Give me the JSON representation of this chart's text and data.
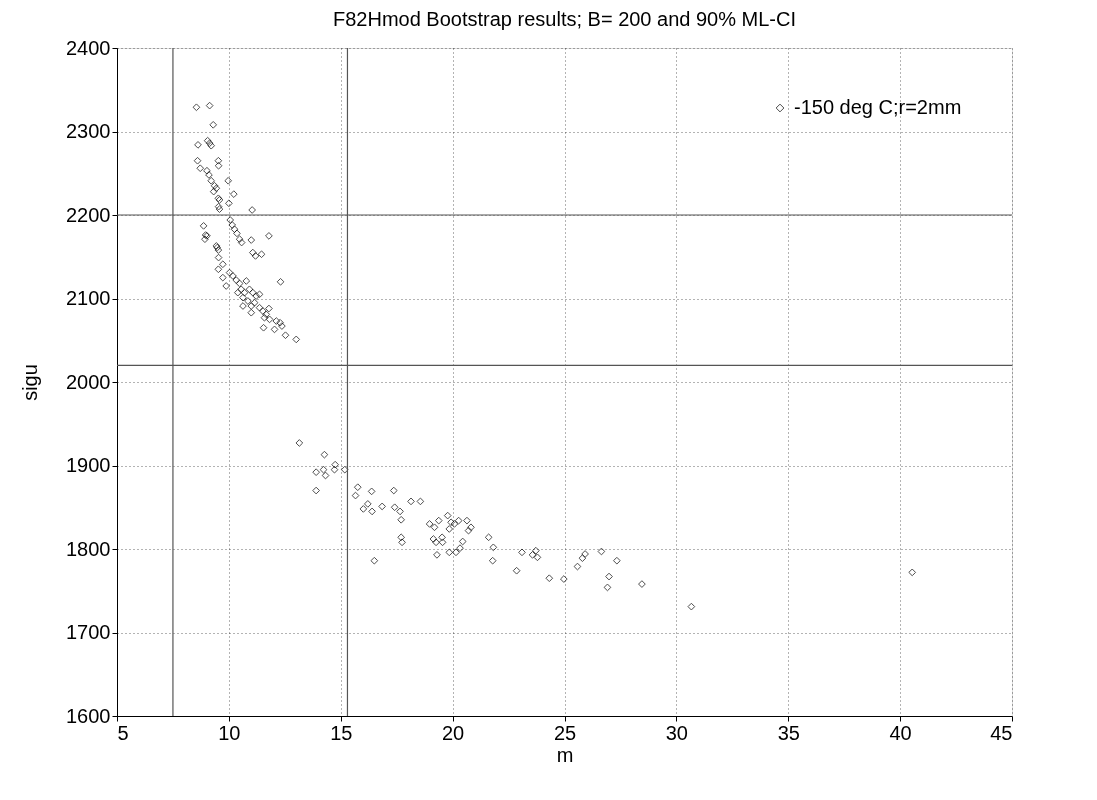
{
  "chart_data": {
    "type": "scatter",
    "title": "F82Hmod Bootstrap results; B=   200 and 90% ML-CI",
    "xlabel": "m",
    "ylabel": "sigu",
    "xlim": [
      5,
      45
    ],
    "xticks": [
      5,
      10,
      15,
      20,
      25,
      30,
      35,
      40,
      45
    ],
    "ylim": [
      1600,
      2400
    ],
    "yticks": [
      1600,
      1700,
      1800,
      1900,
      2000,
      2100,
      2200,
      2300,
      2400
    ],
    "grid": true,
    "legend": "top right",
    "marker": "diamond",
    "ref_lines": [
      {
        "axis": "x",
        "value": 7.5,
        "color": "#555555"
      },
      {
        "axis": "x",
        "value": 15.3,
        "color": "#555555"
      },
      {
        "axis": "y",
        "value": 2200,
        "color": "#555555"
      },
      {
        "axis": "y",
        "value": 2020,
        "color": "#555555"
      }
    ],
    "series": [
      {
        "name": "-150 deg C;r=2mm",
        "color": "#000000",
        "x": [
          8.55,
          9.14,
          9.3,
          8.62,
          9.05,
          9.14,
          9.21,
          8.6,
          9.53,
          9.54,
          8.72,
          9.02,
          9.11,
          9.21,
          9.97,
          9.36,
          9.44,
          9.32,
          10.22,
          9.53,
          9.58,
          10.0,
          9.54,
          9.58,
          11.04,
          10.06,
          10.15,
          10.25,
          10.36,
          8.87,
          8.96,
          9.02,
          8.93,
          11.79,
          10.48,
          10.57,
          11.0,
          9.44,
          9.48,
          9.53,
          11.07,
          11.19,
          11.46,
          9.54,
          9.73,
          9.53,
          9.73,
          9.88,
          10.18,
          10.33,
          10.48,
          10.78,
          10.55,
          10.7,
          10.92,
          11.07,
          11.22,
          11.37,
          10.4,
          10.63,
          10.85,
          10.63,
          11.0,
          11.15,
          11.37,
          11.52,
          11.79,
          11.0,
          11.59,
          12.12,
          12.29,
          11.55,
          12.04,
          12.37,
          12.53,
          13.01,
          11.82,
          11.67,
          10.03,
          12.31,
          13.15,
          14.27,
          13.9,
          14.23,
          14.32,
          14.75,
          14.72,
          15.18,
          13.9,
          15.76,
          15.66,
          16.38,
          17.37,
          16.21,
          16.01,
          16.4,
          16.85,
          17.41,
          17.65,
          17.7,
          18.14,
          18.56,
          17.7,
          17.74,
          16.5,
          18.97,
          19.19,
          19.38,
          19.78,
          19.93,
          19.85,
          20.08,
          20.27,
          20.64,
          20.82,
          20.71,
          19.14,
          19.26,
          19.53,
          19.55,
          19.3,
          19.85,
          20.15,
          20.33,
          20.45,
          21.61,
          21.82,
          21.79,
          22.86,
          23.1,
          23.57,
          23.72,
          23.79,
          24.32,
          24.97,
          25.58,
          25.8,
          25.92,
          26.65,
          26.99,
          26.92,
          27.34,
          28.46,
          30.67,
          40.54
        ],
        "values": [
          2329,
          2331,
          2308,
          2284,
          2289,
          2286,
          2283,
          2265,
          2265,
          2259,
          2256,
          2253,
          2248,
          2241,
          2241,
          2235,
          2232,
          2228,
          2225,
          2220,
          2218,
          2214,
          2210,
          2207,
          2206,
          2194,
          2188,
          2183,
          2178,
          2187,
          2176,
          2175,
          2171,
          2175,
          2171,
          2167,
          2170,
          2163,
          2161,
          2158,
          2155,
          2151,
          2153,
          2149,
          2141,
          2135,
          2125,
          2115,
          2127,
          2122,
          2118,
          2121,
          2111,
          2107,
          2111,
          2107,
          2103,
          2105,
          2107,
          2101,
          2097,
          2091,
          2091,
          2095,
          2089,
          2085,
          2088,
          2083,
          2077,
          2073,
          2071,
          2065,
          2063,
          2067,
          2056,
          2051,
          2075,
          2081,
          2131,
          2120,
          1927,
          1913,
          1892,
          1895,
          1888,
          1901,
          1895,
          1895,
          1870,
          1874,
          1864,
          1869,
          1870,
          1854,
          1848,
          1845,
          1851,
          1850,
          1845,
          1835,
          1857,
          1857,
          1814,
          1808,
          1786,
          1830,
          1826,
          1834,
          1840,
          1832,
          1824,
          1830,
          1834,
          1834,
          1826,
          1822,
          1812,
          1808,
          1814,
          1808,
          1793,
          1796,
          1796,
          1801,
          1809,
          1814,
          1802,
          1786,
          1774,
          1796,
          1793,
          1798,
          1790,
          1765,
          1764,
          1779,
          1789,
          1794,
          1797,
          1767,
          1754,
          1786,
          1758,
          1731,
          1772
        ]
      }
    ]
  }
}
